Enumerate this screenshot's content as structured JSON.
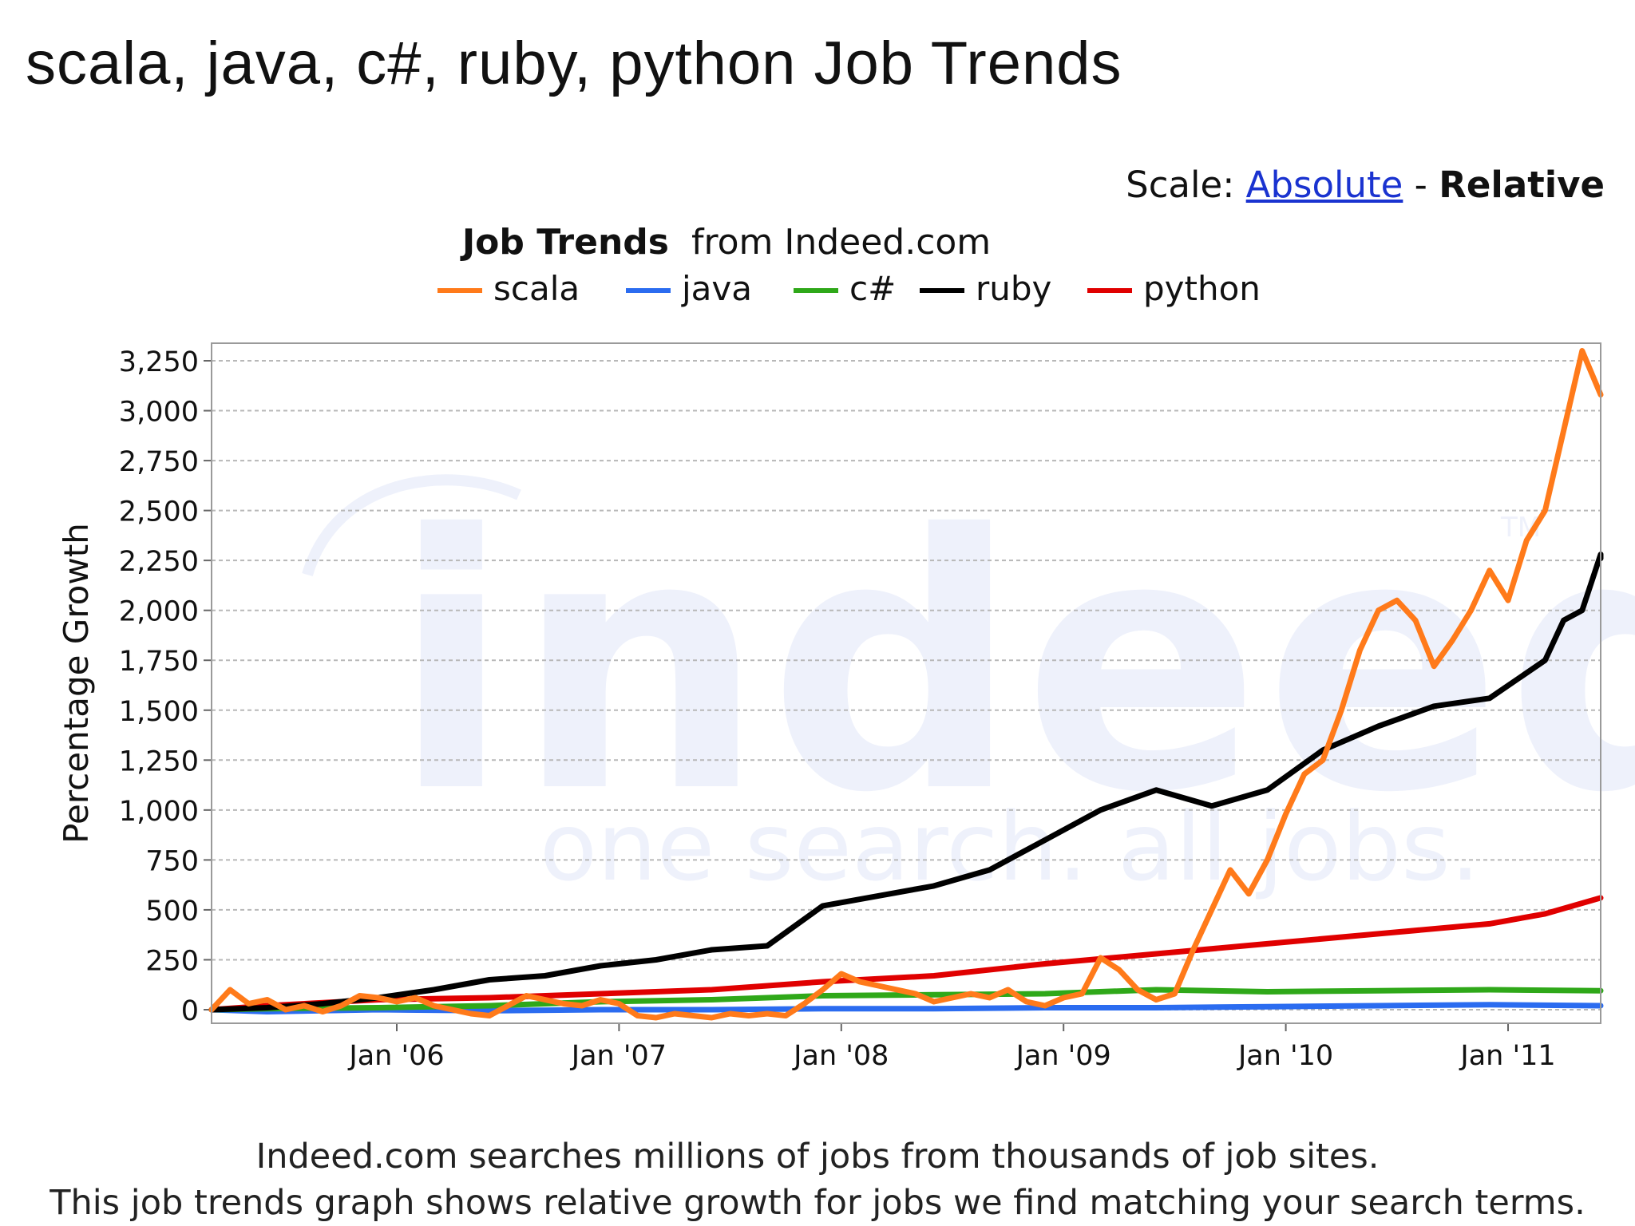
{
  "page": {
    "title": "scala, java, c#, ruby, python Job Trends"
  },
  "scale": {
    "label": "Scale:",
    "absolute": "Absolute",
    "separator": "-",
    "relative": "Relative"
  },
  "watermark": {
    "word": "indeed",
    "tagline": "one search. all jobs.",
    "tm": "TM"
  },
  "footer": {
    "line1": "Indeed.com searches millions of jobs from thousands of job sites.",
    "line2": "This job trends graph shows relative growth for jobs we find matching your search terms."
  },
  "chart_data": {
    "type": "line",
    "title_bold": "Job Trends",
    "title_rest": "from Indeed.com",
    "ylabel": "Percentage Growth",
    "xlabel": "",
    "ylim": [
      0,
      3350
    ],
    "xlim": [
      "2005-03",
      "2011-06"
    ],
    "yticks": [
      0,
      250,
      500,
      750,
      1000,
      1250,
      1500,
      1750,
      2000,
      2250,
      2500,
      2750,
      3000,
      3250
    ],
    "ytick_labels": [
      "0",
      "250",
      "500",
      "750",
      "1,000",
      "1,250",
      "1,500",
      "1,750",
      "2,000",
      "2,250",
      "2,500",
      "2,750",
      "3,000",
      "3,250"
    ],
    "xticks": [
      "2006-01",
      "2007-01",
      "2008-01",
      "2009-01",
      "2010-01",
      "2011-01"
    ],
    "xtick_labels": [
      "Jan '06",
      "Jan '07",
      "Jan '08",
      "Jan '09",
      "Jan '10",
      "Jan '11"
    ],
    "grid": true,
    "legend_position": "top-center",
    "series": [
      {
        "name": "scala",
        "color": "#ff7a1a",
        "points": [
          [
            "2005-03",
            0
          ],
          [
            "2005-04",
            100
          ],
          [
            "2005-05",
            30
          ],
          [
            "2005-06",
            50
          ],
          [
            "2005-07",
            0
          ],
          [
            "2005-08",
            20
          ],
          [
            "2005-09",
            -10
          ],
          [
            "2005-10",
            20
          ],
          [
            "2005-11",
            70
          ],
          [
            "2005-12",
            60
          ],
          [
            "2006-01",
            40
          ],
          [
            "2006-02",
            60
          ],
          [
            "2006-03",
            20
          ],
          [
            "2006-04",
            0
          ],
          [
            "2006-05",
            -20
          ],
          [
            "2006-06",
            -30
          ],
          [
            "2006-07",
            20
          ],
          [
            "2006-08",
            70
          ],
          [
            "2006-09",
            50
          ],
          [
            "2006-10",
            30
          ],
          [
            "2006-11",
            20
          ],
          [
            "2006-12",
            50
          ],
          [
            "2007-01",
            30
          ],
          [
            "2007-02",
            -30
          ],
          [
            "2007-03",
            -40
          ],
          [
            "2007-04",
            -20
          ],
          [
            "2007-05",
            -30
          ],
          [
            "2007-06",
            -40
          ],
          [
            "2007-07",
            -20
          ],
          [
            "2007-08",
            -30
          ],
          [
            "2007-09",
            -20
          ],
          [
            "2007-10",
            -30
          ],
          [
            "2007-11",
            30
          ],
          [
            "2007-12",
            100
          ],
          [
            "2008-01",
            180
          ],
          [
            "2008-02",
            140
          ],
          [
            "2008-03",
            120
          ],
          [
            "2008-04",
            100
          ],
          [
            "2008-05",
            80
          ],
          [
            "2008-06",
            40
          ],
          [
            "2008-07",
            60
          ],
          [
            "2008-08",
            80
          ],
          [
            "2008-09",
            60
          ],
          [
            "2008-10",
            100
          ],
          [
            "2008-11",
            40
          ],
          [
            "2008-12",
            20
          ],
          [
            "2009-01",
            60
          ],
          [
            "2009-02",
            80
          ],
          [
            "2009-03",
            260
          ],
          [
            "2009-04",
            200
          ],
          [
            "2009-05",
            100
          ],
          [
            "2009-06",
            50
          ],
          [
            "2009-07",
            80
          ],
          [
            "2009-08",
            300
          ],
          [
            "2009-09",
            500
          ],
          [
            "2009-10",
            700
          ],
          [
            "2009-11",
            580
          ],
          [
            "2009-12",
            750
          ],
          [
            "2010-01",
            980
          ],
          [
            "2010-02",
            1180
          ],
          [
            "2010-03",
            1250
          ],
          [
            "2010-04",
            1500
          ],
          [
            "2010-05",
            1800
          ],
          [
            "2010-06",
            2000
          ],
          [
            "2010-07",
            2050
          ],
          [
            "2010-08",
            1950
          ],
          [
            "2010-09",
            1720
          ],
          [
            "2010-10",
            1850
          ],
          [
            "2010-11",
            2000
          ],
          [
            "2010-12",
            2200
          ],
          [
            "2011-01",
            2050
          ],
          [
            "2011-02",
            2350
          ],
          [
            "2011-03",
            2500
          ],
          [
            "2011-04",
            2900
          ],
          [
            "2011-05",
            3300
          ],
          [
            "2011-06",
            3080
          ]
        ]
      },
      {
        "name": "java",
        "color": "#2b6cf0",
        "points": [
          [
            "2005-03",
            0
          ],
          [
            "2005-06",
            -10
          ],
          [
            "2005-12",
            0
          ],
          [
            "2006-06",
            -5
          ],
          [
            "2006-12",
            0
          ],
          [
            "2007-06",
            0
          ],
          [
            "2007-12",
            5
          ],
          [
            "2008-06",
            5
          ],
          [
            "2008-12",
            10
          ],
          [
            "2009-06",
            10
          ],
          [
            "2009-12",
            15
          ],
          [
            "2010-06",
            20
          ],
          [
            "2010-12",
            25
          ],
          [
            "2011-06",
            20
          ]
        ]
      },
      {
        "name": "c#",
        "color": "#2fa819",
        "points": [
          [
            "2005-03",
            0
          ],
          [
            "2005-06",
            5
          ],
          [
            "2005-12",
            10
          ],
          [
            "2006-06",
            20
          ],
          [
            "2006-12",
            40
          ],
          [
            "2007-06",
            50
          ],
          [
            "2007-12",
            70
          ],
          [
            "2008-06",
            75
          ],
          [
            "2008-12",
            80
          ],
          [
            "2009-06",
            100
          ],
          [
            "2009-12",
            90
          ],
          [
            "2010-06",
            95
          ],
          [
            "2010-12",
            100
          ],
          [
            "2011-06",
            95
          ]
        ]
      },
      {
        "name": "ruby",
        "color": "#000000",
        "points": [
          [
            "2005-03",
            0
          ],
          [
            "2005-06",
            10
          ],
          [
            "2005-09",
            30
          ],
          [
            "2005-12",
            60
          ],
          [
            "2006-03",
            100
          ],
          [
            "2006-06",
            150
          ],
          [
            "2006-09",
            170
          ],
          [
            "2006-12",
            220
          ],
          [
            "2007-03",
            250
          ],
          [
            "2007-06",
            300
          ],
          [
            "2007-09",
            320
          ],
          [
            "2007-12",
            520
          ],
          [
            "2008-03",
            570
          ],
          [
            "2008-06",
            620
          ],
          [
            "2008-09",
            700
          ],
          [
            "2008-12",
            850
          ],
          [
            "2009-03",
            1000
          ],
          [
            "2009-06",
            1100
          ],
          [
            "2009-09",
            1020
          ],
          [
            "2009-12",
            1100
          ],
          [
            "2010-03",
            1300
          ],
          [
            "2010-06",
            1420
          ],
          [
            "2010-09",
            1520
          ],
          [
            "2010-12",
            1560
          ],
          [
            "2011-03",
            1750
          ],
          [
            "2011-04",
            1950
          ],
          [
            "2011-05",
            2000
          ],
          [
            "2011-06",
            2280
          ],
          [
            "2011-06",
            2260
          ]
        ]
      },
      {
        "name": "python",
        "color": "#e00000",
        "points": [
          [
            "2005-03",
            0
          ],
          [
            "2005-06",
            20
          ],
          [
            "2005-12",
            50
          ],
          [
            "2006-06",
            60
          ],
          [
            "2006-12",
            80
          ],
          [
            "2007-06",
            100
          ],
          [
            "2007-12",
            140
          ],
          [
            "2008-06",
            170
          ],
          [
            "2008-12",
            230
          ],
          [
            "2009-06",
            280
          ],
          [
            "2009-12",
            330
          ],
          [
            "2010-06",
            380
          ],
          [
            "2010-12",
            430
          ],
          [
            "2011-03",
            480
          ],
          [
            "2011-06",
            560
          ]
        ]
      }
    ]
  }
}
